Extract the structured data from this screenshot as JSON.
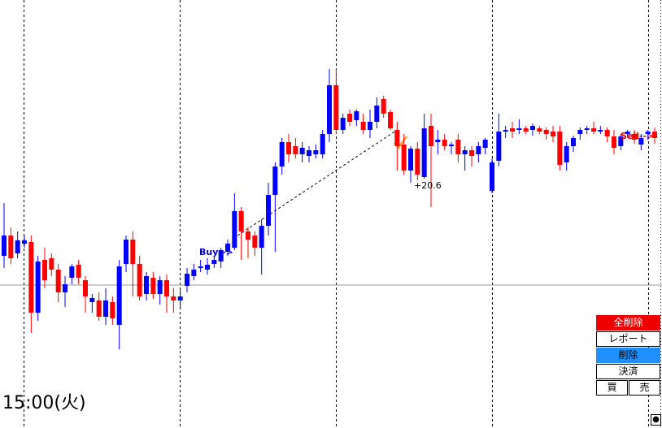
{
  "chart_data": {
    "type": "candlestick",
    "up_color": "#0000ff",
    "down_color": "#ff0000",
    "ylim": [
      0,
      527
    ],
    "current_price": 176,
    "trade": {
      "entry": 237,
      "exit": 367
    },
    "annotations": {
      "buy": "Buy-->",
      "profit": "+20.6",
      "sell": "Sell-->"
    },
    "time_label": "15:00(火)",
    "candles": [
      [
        212,
        277,
        197,
        237
      ],
      [
        237,
        247,
        202,
        209
      ],
      [
        215,
        242,
        209,
        231
      ],
      [
        227,
        237,
        222,
        231
      ],
      [
        229,
        237,
        117,
        142
      ],
      [
        142,
        212,
        132,
        205
      ],
      [
        207,
        222,
        172,
        182
      ],
      [
        209,
        215,
        187,
        195
      ],
      [
        195,
        202,
        155,
        167
      ],
      [
        167,
        187,
        149,
        177
      ],
      [
        185,
        202,
        177,
        199
      ],
      [
        201,
        207,
        177,
        185
      ],
      [
        182,
        187,
        142,
        162
      ],
      [
        155,
        165,
        142,
        160
      ],
      [
        157,
        167,
        132,
        137
      ],
      [
        137,
        172,
        127,
        157
      ],
      [
        155,
        162,
        127,
        135
      ],
      [
        127,
        207,
        97,
        199
      ],
      [
        202,
        237,
        192,
        232
      ],
      [
        232,
        242,
        162,
        202
      ],
      [
        202,
        212,
        157,
        162
      ],
      [
        165,
        192,
        157,
        187
      ],
      [
        185,
        192,
        159,
        165
      ],
      [
        165,
        187,
        152,
        182
      ],
      [
        182,
        189,
        142,
        162
      ],
      [
        162,
        172,
        142,
        157
      ],
      [
        157,
        172,
        147,
        162
      ],
      [
        175,
        197,
        167,
        190
      ],
      [
        187,
        202,
        182,
        195
      ],
      [
        197,
        207,
        192,
        199
      ],
      [
        195,
        209,
        189,
        201
      ],
      [
        202,
        212,
        197,
        207
      ],
      [
        205,
        222,
        197,
        219
      ],
      [
        217,
        232,
        212,
        227
      ],
      [
        222,
        289,
        219,
        267
      ],
      [
        267,
        272,
        207,
        242
      ],
      [
        242,
        247,
        209,
        232
      ],
      [
        237,
        242,
        212,
        222
      ],
      [
        222,
        257,
        189,
        249
      ],
      [
        249,
        302,
        237,
        287
      ],
      [
        287,
        327,
        217,
        322
      ],
      [
        322,
        357,
        312,
        352
      ],
      [
        352,
        362,
        327,
        337
      ],
      [
        347,
        357,
        332,
        337
      ],
      [
        337,
        352,
        327,
        345
      ],
      [
        335,
        347,
        327,
        342
      ],
      [
        337,
        349,
        332,
        342
      ],
      [
        337,
        367,
        332,
        362
      ],
      [
        362,
        442,
        352,
        422
      ],
      [
        422,
        442,
        362,
        367
      ],
      [
        367,
        387,
        362,
        382
      ],
      [
        387,
        392,
        372,
        377
      ],
      [
        379,
        392,
        372,
        390
      ],
      [
        377,
        387,
        362,
        367
      ],
      [
        367,
        392,
        357,
        377
      ],
      [
        377,
        407,
        369,
        397
      ],
      [
        405,
        409,
        382,
        387
      ],
      [
        389,
        392,
        367,
        369
      ],
      [
        367,
        377,
        317,
        347
      ],
      [
        349,
        362,
        312,
        317
      ],
      [
        317,
        347,
        302,
        344
      ],
      [
        344,
        352,
        305,
        312
      ],
      [
        309,
        387,
        307,
        369
      ],
      [
        372,
        387,
        272,
        347
      ],
      [
        352,
        367,
        337,
        355
      ],
      [
        355,
        362,
        342,
        347
      ],
      [
        347,
        352,
        337,
        349
      ],
      [
        355,
        362,
        327,
        337
      ],
      [
        337,
        347,
        317,
        342
      ],
      [
        342,
        347,
        322,
        335
      ],
      [
        337,
        352,
        327,
        347
      ],
      [
        345,
        357,
        337,
        355
      ],
      [
        292,
        332,
        289,
        327
      ],
      [
        329,
        387,
        322,
        365
      ],
      [
        365,
        372,
        357,
        367
      ],
      [
        369,
        377,
        357,
        365
      ],
      [
        367,
        380,
        362,
        369
      ],
      [
        369,
        372,
        362,
        365
      ],
      [
        367,
        375,
        360,
        372
      ],
      [
        369,
        372,
        362,
        365
      ],
      [
        367,
        370,
        355,
        362
      ],
      [
        365,
        372,
        352,
        359
      ],
      [
        365,
        372,
        317,
        324
      ],
      [
        327,
        352,
        317,
        347
      ],
      [
        347,
        360,
        340,
        357
      ],
      [
        362,
        370,
        355,
        367
      ],
      [
        367,
        372,
        362,
        369
      ],
      [
        369,
        377,
        362,
        365
      ],
      [
        365,
        372,
        362,
        367
      ],
      [
        367,
        370,
        352,
        359
      ],
      [
        359,
        367,
        337,
        345
      ],
      [
        347,
        362,
        342,
        359
      ],
      [
        362,
        367,
        357,
        365
      ],
      [
        362,
        367,
        350,
        355
      ],
      [
        349,
        362,
        342,
        357
      ],
      [
        362,
        367,
        355,
        365
      ],
      [
        365,
        370,
        350,
        357
      ]
    ]
  },
  "buttons": {
    "delete_all": "全削除",
    "report": "レポート",
    "delete": "削除",
    "settle": "決済",
    "buy": "買",
    "sell": "売"
  },
  "corner": "●"
}
